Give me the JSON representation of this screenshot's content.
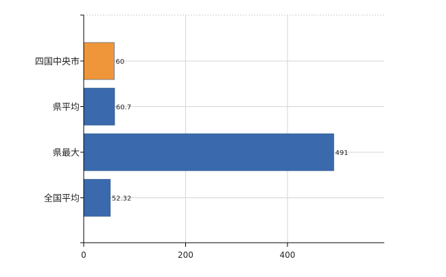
{
  "chart_data": {
    "type": "bar",
    "orientation": "horizontal",
    "categories": [
      "四国中央市",
      "県平均",
      "県最大",
      "全国平均"
    ],
    "values": [
      60,
      60.7,
      491,
      52.32
    ],
    "value_labels": [
      "60",
      "60.7",
      "491",
      "52.32"
    ],
    "bar_colors": [
      "#f0963a",
      "#3a6aad",
      "#3a6aad",
      "#3a6aad"
    ],
    "highlight_color": "#f0963a",
    "series_color": "#3a6aad",
    "x_ticks": [
      0,
      200,
      400
    ],
    "x_tick_labels": [
      "0",
      "200",
      "400"
    ],
    "xlim": [
      0,
      590
    ],
    "grid": true,
    "title": "",
    "xlabel": "",
    "ylabel": ""
  }
}
